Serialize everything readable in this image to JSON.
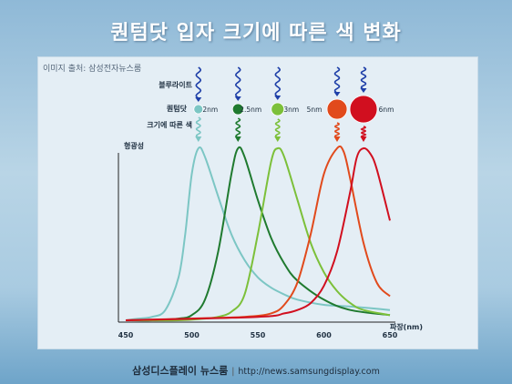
{
  "title": "퀀텀닷 입자 크기에 따른 색 변화",
  "source": "이미지 출처: 삼성전자뉴스룸",
  "footer": {
    "brand": "삼성디스플레이 뉴스룸",
    "separator": "|",
    "url": "http://news.samsungdisplay.com"
  },
  "diagram": {
    "blue_light_label": "블루라이트",
    "quantum_dot_label": "퀀텀닷",
    "emitted_color_label": "크기에 따른 색",
    "dots": [
      {
        "size": "2nm",
        "color": "#7cc6c4",
        "radius": 5
      },
      {
        "size": "2.5nm",
        "color": "#1f7a2f",
        "radius": 6
      },
      {
        "size": "3nm",
        "color": "#7cc03a",
        "radius": 7
      },
      {
        "size": "5nm",
        "color": "#e14a1c",
        "radius": 11
      },
      {
        "size": "6nm",
        "color": "#d10f1f",
        "radius": 15
      }
    ]
  },
  "chart_data": {
    "type": "line",
    "title": "",
    "xlabel": "파장(nm)",
    "ylabel": "형광성",
    "xlim": [
      450,
      650
    ],
    "ylim": [
      0,
      1
    ],
    "xticks": [
      "450",
      "500",
      "550",
      "600",
      "650"
    ],
    "series": [
      {
        "color": "#7cc6c4",
        "x": [
          450,
          460,
          470,
          480,
          490,
          495,
          500,
          505,
          510,
          520,
          530,
          540,
          550,
          560,
          570,
          580,
          600,
          620,
          650
        ],
        "y": [
          0.0,
          0.01,
          0.02,
          0.06,
          0.25,
          0.5,
          0.85,
          1.0,
          0.95,
          0.72,
          0.5,
          0.35,
          0.25,
          0.19,
          0.15,
          0.12,
          0.09,
          0.08,
          0.06
        ]
      },
      {
        "color": "#1f7a2f",
        "x": [
          450,
          470,
          490,
          500,
          510,
          520,
          530,
          535,
          540,
          550,
          560,
          570,
          580,
          600,
          620,
          650
        ],
        "y": [
          0.0,
          0.0,
          0.01,
          0.03,
          0.12,
          0.4,
          0.85,
          1.0,
          0.95,
          0.7,
          0.48,
          0.33,
          0.23,
          0.12,
          0.06,
          0.03
        ]
      },
      {
        "color": "#7cc03a",
        "x": [
          450,
          490,
          510,
          520,
          530,
          540,
          550,
          560,
          565,
          570,
          580,
          590,
          600,
          610,
          620,
          630,
          650
        ],
        "y": [
          0.0,
          0.0,
          0.01,
          0.02,
          0.05,
          0.15,
          0.5,
          0.92,
          1.0,
          0.95,
          0.7,
          0.45,
          0.28,
          0.17,
          0.1,
          0.06,
          0.03
        ]
      },
      {
        "color": "#e14a1c",
        "x": [
          450,
          500,
          540,
          560,
          570,
          580,
          590,
          600,
          610,
          615,
          620,
          630,
          640,
          650
        ],
        "y": [
          0.0,
          0.01,
          0.02,
          0.04,
          0.09,
          0.22,
          0.5,
          0.85,
          1.0,
          0.98,
          0.82,
          0.45,
          0.22,
          0.14
        ]
      },
      {
        "color": "#d10f1f",
        "x": [
          450,
          550,
          570,
          580,
          590,
          600,
          610,
          620,
          625,
          630,
          635,
          640,
          650
        ],
        "y": [
          0.0,
          0.02,
          0.04,
          0.06,
          0.1,
          0.2,
          0.4,
          0.75,
          0.95,
          1.0,
          0.97,
          0.88,
          0.58
        ]
      }
    ]
  }
}
